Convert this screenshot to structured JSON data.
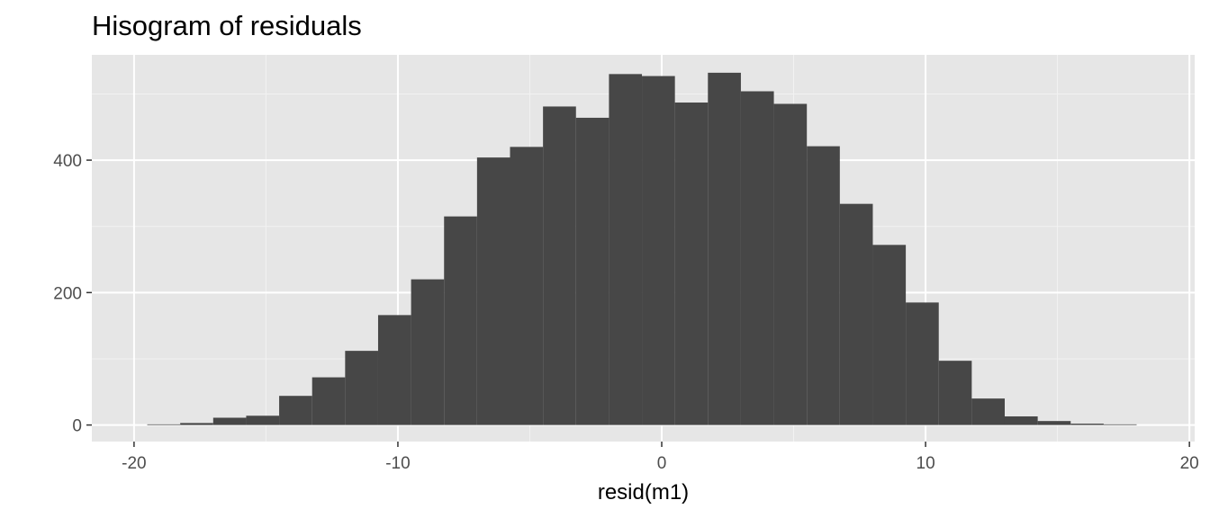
{
  "chart_data": {
    "type": "bar",
    "title": "Hisogram of residuals",
    "xlabel": "resid(m1)",
    "ylabel": "",
    "xlim": [
      -21.6,
      20.2
    ],
    "ylim": [
      -25,
      559
    ],
    "x_ticks": [
      -20,
      -10,
      0,
      10,
      20
    ],
    "y_ticks": [
      0,
      200,
      400
    ],
    "grid": true,
    "legend": "none",
    "bin_edges": [
      -19.5,
      -18.25,
      -17.0,
      -15.75,
      -14.5,
      -13.25,
      -12.0,
      -10.75,
      -9.5,
      -8.25,
      -7.0,
      -5.75,
      -4.5,
      -3.25,
      -2.0,
      -0.75,
      0.5,
      1.75,
      3.0,
      4.25,
      5.5,
      6.75,
      8.0,
      9.25,
      10.5,
      11.75,
      13.0,
      14.25,
      15.5,
      16.75,
      18.0
    ],
    "counts": [
      1,
      3,
      11,
      14,
      44,
      72,
      112,
      166,
      220,
      315,
      404,
      420,
      481,
      464,
      530,
      527,
      487,
      532,
      504,
      485,
      421,
      334,
      272,
      185,
      97,
      40,
      13,
      6,
      2,
      1
    ],
    "colors": {
      "panel": "#e6e6e6",
      "grid_major": "#ffffff",
      "grid_minor": "#f2f2f2",
      "bar": "#474747",
      "tick": "#333333"
    }
  }
}
